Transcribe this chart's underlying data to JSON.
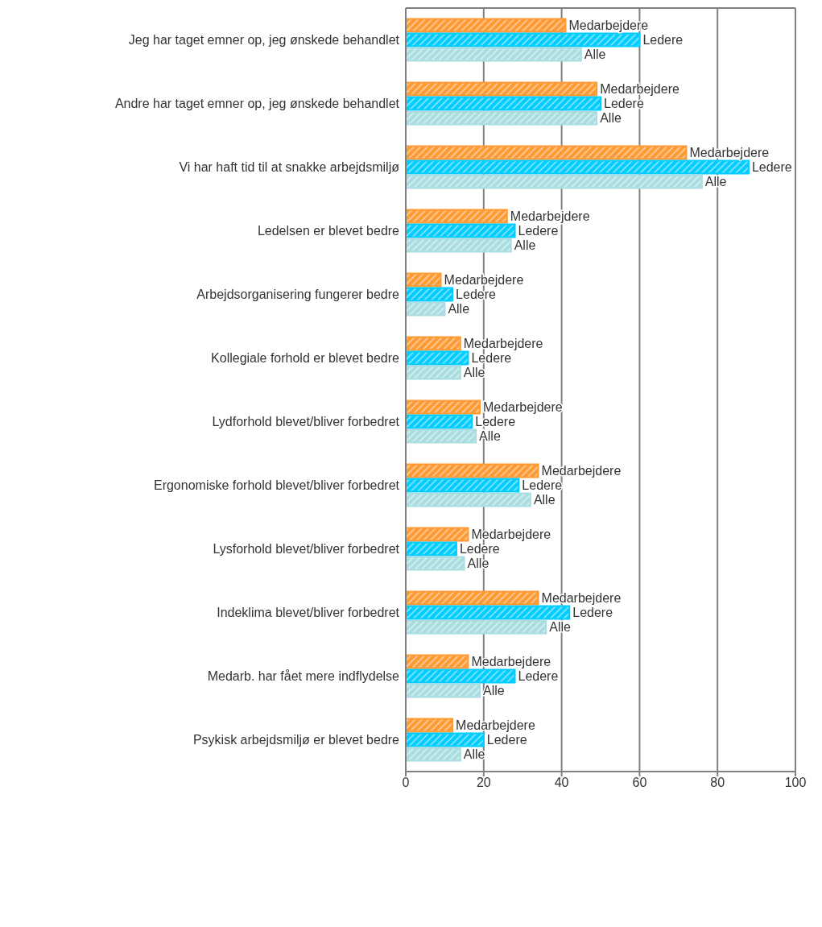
{
  "chart_data": {
    "type": "bar",
    "orientation": "horizontal",
    "categories": [
      "Jeg har taget emner op, jeg ønskede behandlet",
      "Andre har taget emner op, jeg ønskede behandlet",
      "Vi har haft tid til at snakke arbejdsmiljø",
      "Ledelsen er blevet bedre",
      "Arbejdsorganisering fungerer bedre",
      "Kollegiale forhold er blevet bedre",
      "Lydforhold blevet/bliver forbedret",
      "Ergonomiske forhold blevet/bliver forbedret",
      "Lysforhold blevet/bliver forbedret",
      "Indeklima blevet/bliver forbedret",
      "Medarb. har fået mere indflydelse",
      "Psykisk arbejdsmiljø er blevet bedre"
    ],
    "series": [
      {
        "name": "Medarbejdere",
        "color": "#ff9933",
        "values": [
          41,
          49,
          72,
          26,
          9,
          14,
          19,
          34,
          16,
          34,
          16,
          12
        ]
      },
      {
        "name": "Ledere",
        "color": "#00ccff",
        "values": [
          60,
          50,
          88,
          28,
          12,
          16,
          17,
          29,
          13,
          42,
          28,
          20
        ]
      },
      {
        "name": "Alle",
        "color": "#aadde0",
        "values": [
          45,
          49,
          76,
          27,
          10,
          14,
          18,
          32,
          15,
          36,
          19,
          14
        ]
      }
    ],
    "xlim": [
      0,
      100
    ],
    "xticks": [
      0,
      20,
      40,
      60,
      80,
      100
    ],
    "grid": "x"
  }
}
